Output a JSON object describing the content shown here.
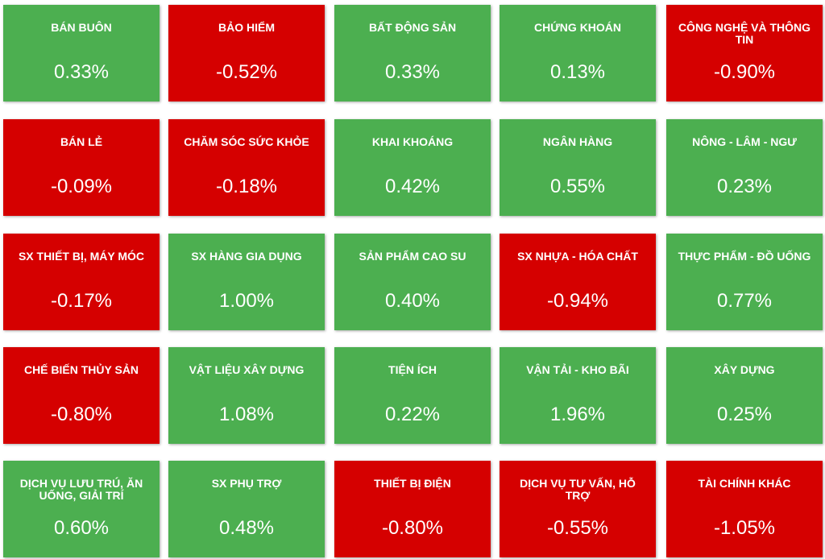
{
  "colors": {
    "positive": "#4caf50",
    "negative": "#d50000",
    "text": "#ffffff"
  },
  "chart_data": {
    "type": "heatmap",
    "columns": 5,
    "rows": 5,
    "cells": [
      {
        "name": "BÁN BUÔN",
        "value": 0.33,
        "label": "0.33%"
      },
      {
        "name": "BẢO HIỂM",
        "value": -0.52,
        "label": "-0.52%"
      },
      {
        "name": "BẤT ĐỘNG SẢN",
        "value": 0.33,
        "label": "0.33%"
      },
      {
        "name": "CHỨNG KHOÁN",
        "value": 0.13,
        "label": "0.13%"
      },
      {
        "name": "CÔNG NGHỆ VÀ THÔNG TIN",
        "value": -0.9,
        "label": "-0.90%"
      },
      {
        "name": "BÁN LẺ",
        "value": -0.09,
        "label": "-0.09%"
      },
      {
        "name": "CHĂM SÓC SỨC KHỎE",
        "value": -0.18,
        "label": "-0.18%"
      },
      {
        "name": "KHAI KHOÁNG",
        "value": 0.42,
        "label": "0.42%"
      },
      {
        "name": "NGÂN HÀNG",
        "value": 0.55,
        "label": "0.55%"
      },
      {
        "name": "NÔNG - LÂM - NGƯ",
        "value": 0.23,
        "label": "0.23%"
      },
      {
        "name": "SX THIẾT BỊ, MÁY MÓC",
        "value": -0.17,
        "label": "-0.17%"
      },
      {
        "name": "SX HÀNG GIA DỤNG",
        "value": 1.0,
        "label": "1.00%"
      },
      {
        "name": "SẢN PHẨM CAO SU",
        "value": 0.4,
        "label": "0.40%"
      },
      {
        "name": "SX NHỰA - HÓA CHẤT",
        "value": -0.94,
        "label": "-0.94%"
      },
      {
        "name": "THỰC PHẨM - ĐỒ UỐNG",
        "value": 0.77,
        "label": "0.77%"
      },
      {
        "name": "CHẾ BIẾN THỦY SẢN",
        "value": -0.8,
        "label": "-0.80%"
      },
      {
        "name": "VẬT LIỆU XÂY DỰNG",
        "value": 1.08,
        "label": "1.08%"
      },
      {
        "name": "TIỆN ÍCH",
        "value": 0.22,
        "label": "0.22%"
      },
      {
        "name": "VẬN TẢI - KHO BÃI",
        "value": 1.96,
        "label": "1.96%"
      },
      {
        "name": "XÂY DỰNG",
        "value": 0.25,
        "label": "0.25%"
      },
      {
        "name": "DỊCH VỤ LƯU TRÚ, ĂN UỐNG, GIẢI TRÍ",
        "value": 0.6,
        "label": "0.60%"
      },
      {
        "name": "SX PHỤ TRỢ",
        "value": 0.48,
        "label": "0.48%"
      },
      {
        "name": "THIẾT BỊ ĐIỆN",
        "value": -0.8,
        "label": "-0.80%"
      },
      {
        "name": "DỊCH VỤ TƯ VẤN, HỖ TRỢ",
        "value": -0.55,
        "label": "-0.55%"
      },
      {
        "name": "TÀI CHÍNH KHÁC",
        "value": -1.05,
        "label": "-1.05%"
      }
    ]
  }
}
